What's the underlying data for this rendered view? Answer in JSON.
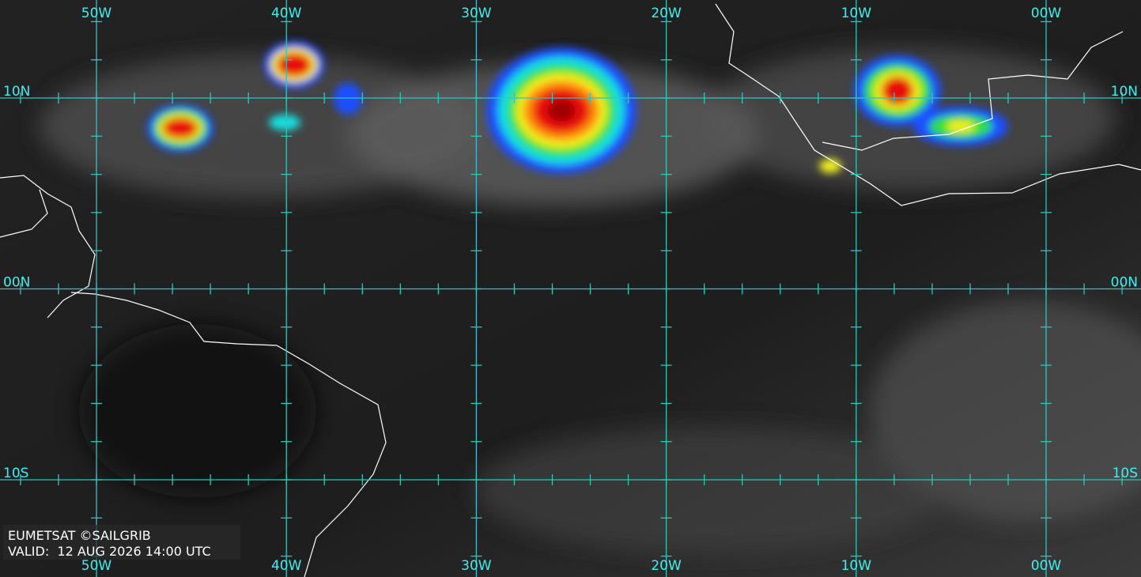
{
  "map": {
    "lon_labels": [
      "50W",
      "40W",
      "30W",
      "20W",
      "10W",
      "00W"
    ],
    "lat_labels": [
      "10N",
      "00N",
      "10S"
    ],
    "credit": "EUMETSAT ©SAILGRIB",
    "valid": "VALID:  12 AUG 2026 14:00 UTC"
  }
}
